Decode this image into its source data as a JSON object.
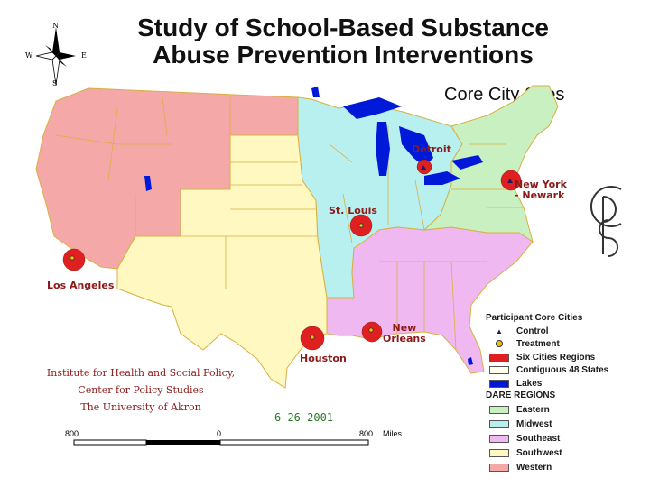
{
  "title": {
    "line1": "Study of School-Based Substance",
    "line2": "Abuse Prevention Interventions"
  },
  "subtitle": "Core City Sites",
  "compass": {
    "n": "N",
    "s": "S",
    "e": "E",
    "w": "W"
  },
  "cities": {
    "detroit": "Detroit",
    "new_york": "New York\n- Newark",
    "st_louis": "St. Louis",
    "los_angeles": "Los Angeles",
    "houston": "Houston",
    "new_orleans": "New\nOrleans"
  },
  "institute": {
    "line1": "Institute for Health and Social Policy,",
    "line2": "Center for Policy Studies",
    "line3": "The University of Akron"
  },
  "date": "6-26-2001",
  "scale": {
    "left": "800",
    "center": "0",
    "right": "800",
    "unit": "Miles"
  },
  "legend": {
    "heading1": "Participant Core Cities",
    "control": "Control",
    "treatment": "Treatment",
    "six_cities": "Six Cities Regions",
    "contiguous": "Contiguous 48 States",
    "lakes": "Lakes",
    "heading2": "DARE REGIONS",
    "eastern": "Eastern",
    "midwest": "Midwest",
    "southeast": "Southeast",
    "southwest": "Southwest",
    "western": "Western"
  },
  "colors": {
    "eastern": "#c8f0c0",
    "midwest": "#b8f0f0",
    "southeast": "#f0b8f0",
    "southwest": "#fff8c0",
    "western": "#f5a8a8",
    "lakes": "#0018d8",
    "city": "#e02020",
    "title_red": "#8b1a1a"
  },
  "logo": {
    "text": "CPS"
  }
}
